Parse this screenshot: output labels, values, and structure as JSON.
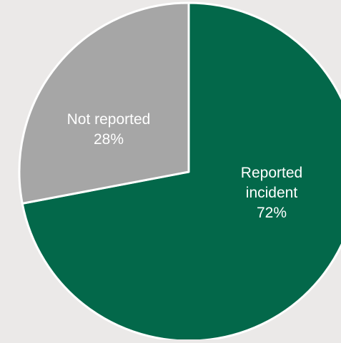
{
  "chart_data": {
    "type": "pie",
    "categories": [
      "Reported incident",
      "Not reported"
    ],
    "values": [
      72,
      28
    ],
    "value_labels": [
      "72%",
      "28%"
    ],
    "colors": [
      "#03684a",
      "#a6a6a6"
    ],
    "title": "",
    "legend": "none",
    "start_angle": "12 o'clock, clockwise"
  },
  "background": "#ebe9e8",
  "slice_border": "#ffffff"
}
